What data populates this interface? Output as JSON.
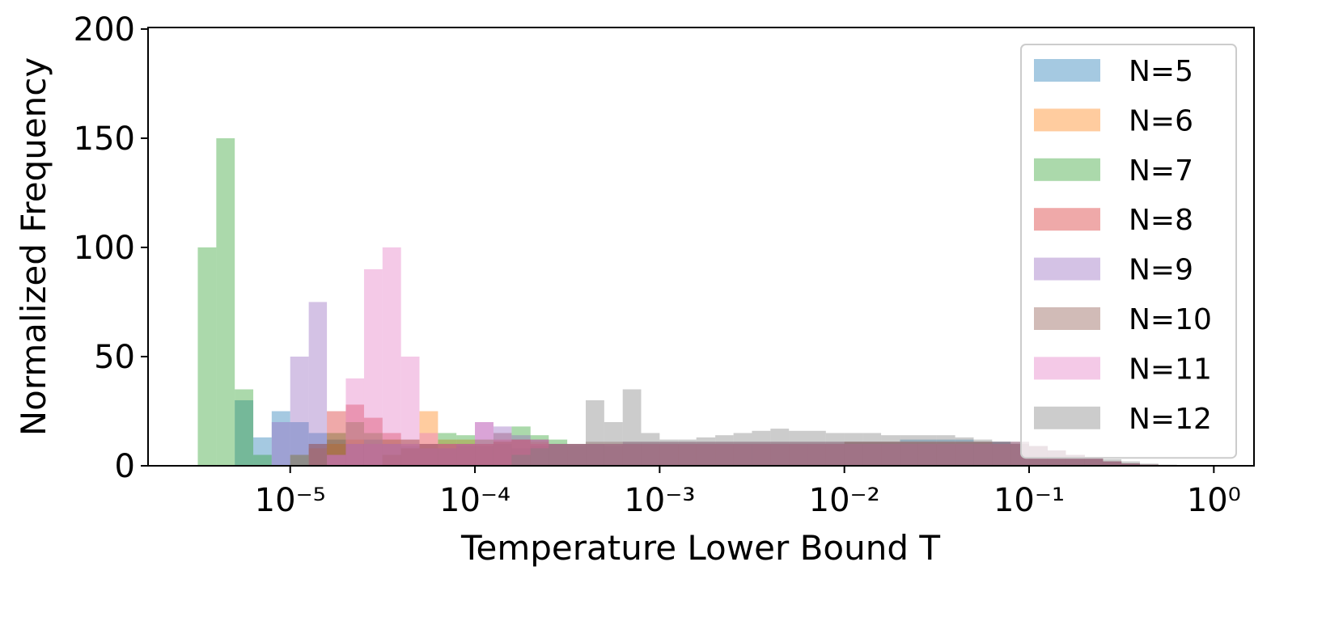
{
  "chart_data": {
    "type": "histogram",
    "xlabel": "Temperature Lower Bound T",
    "ylabel": "Normalized Frequency",
    "xscale": "log",
    "xlim": [
      1.7e-06,
      1.65
    ],
    "ylim": [
      0,
      200.7
    ],
    "xticks": [
      {
        "value": 1e-05,
        "label": "10⁻⁵"
      },
      {
        "value": 0.0001,
        "label": "10⁻⁴"
      },
      {
        "value": 0.001,
        "label": "10⁻³"
      },
      {
        "value": 0.01,
        "label": "10⁻²"
      },
      {
        "value": 0.1,
        "label": "10⁻¹"
      },
      {
        "value": 1,
        "label": "10⁰"
      }
    ],
    "yticks": [
      0,
      50,
      100,
      150,
      200
    ],
    "legend": "upper right",
    "opacity": 0.4,
    "bins": [
      3.16e-06,
      3.98e-06,
      5.01e-06,
      6.31e-06,
      7.94e-06,
      1e-05,
      1.26e-05,
      1.58e-05,
      2e-05,
      2.51e-05,
      3.16e-05,
      3.98e-05,
      5.01e-05,
      6.31e-05,
      7.94e-05,
      0.0001,
      0.000126,
      0.000158,
      0.0002,
      0.000251,
      0.000316,
      0.000398,
      0.000501,
      0.000631,
      0.000794,
      0.001,
      0.00126,
      0.00158,
      0.002,
      0.00251,
      0.00316,
      0.00398,
      0.00501,
      0.00631,
      0.00794,
      0.01,
      0.0126,
      0.0158,
      0.02,
      0.0251,
      0.0316,
      0.0398,
      0.0501,
      0.0631,
      0.0794,
      0.1,
      0.126,
      0.158,
      0.2,
      0.251,
      0.316,
      0.398,
      0.501,
      0.631,
      0.794,
      1
    ],
    "series": [
      {
        "name": "N=5",
        "color": "#1f77b4",
        "values": [
          0,
          0,
          30,
          13,
          25,
          20,
          15,
          12,
          10,
          12,
          10,
          9,
          10,
          8,
          9,
          9,
          10,
          8,
          9,
          10,
          9,
          10,
          9,
          10,
          10,
          10,
          10,
          10,
          10,
          10,
          10,
          10,
          10,
          10,
          10,
          11,
          11,
          11,
          12,
          12,
          12,
          12,
          11,
          11,
          10,
          9,
          7,
          5,
          4,
          2,
          1,
          0.5,
          0.2,
          0,
          0
        ]
      },
      {
        "name": "N=6",
        "color": "#ff7f0e",
        "values": [
          0,
          0,
          0,
          0,
          0,
          5,
          8,
          10,
          12,
          10,
          12,
          10,
          25,
          12,
          12,
          12,
          11,
          12,
          11,
          10,
          10,
          10,
          10,
          10,
          10,
          10,
          10,
          10,
          10,
          10,
          10,
          10,
          10,
          10,
          10,
          11,
          11,
          11,
          11,
          11,
          11,
          11,
          11,
          10,
          10,
          9,
          7,
          5,
          4,
          2,
          1,
          0.5,
          0.2,
          0,
          0
        ]
      },
      {
        "name": "N=7",
        "color": "#2ca02c",
        "values": [
          100,
          150,
          35,
          5,
          0,
          5,
          10,
          15,
          20,
          15,
          12,
          12,
          10,
          15,
          14,
          12,
          15,
          18,
          14,
          12,
          10,
          10,
          10,
          10,
          10,
          10,
          10,
          10,
          10,
          10,
          10,
          10,
          10,
          10,
          10,
          10,
          10,
          10,
          10,
          10,
          10,
          10,
          10,
          10,
          10,
          9,
          7,
          5,
          4,
          2,
          1,
          0.5,
          0.2,
          0,
          0
        ]
      },
      {
        "name": "N=8",
        "color": "#d62728",
        "values": [
          0,
          0,
          0,
          0,
          0,
          0,
          10,
          25,
          28,
          22,
          15,
          12,
          10,
          10,
          10,
          10,
          12,
          12,
          10,
          10,
          10,
          10,
          10,
          10,
          10,
          10,
          10,
          10,
          10,
          10,
          10,
          10,
          10,
          10,
          10,
          10,
          10,
          10,
          10,
          10,
          10,
          10,
          10,
          10,
          10,
          9,
          7,
          5,
          4,
          2,
          1,
          0.5,
          0.2,
          0,
          0
        ]
      },
      {
        "name": "N=9",
        "color": "#9467bd",
        "values": [
          0,
          0,
          0,
          0,
          20,
          50,
          75,
          5,
          10,
          10,
          10,
          10,
          8,
          8,
          10,
          20,
          18,
          14,
          12,
          10,
          10,
          10,
          10,
          11,
          11,
          11,
          11,
          11,
          11,
          11,
          11,
          11,
          11,
          11,
          11,
          11,
          11,
          11,
          11,
          11,
          11,
          11,
          11,
          11,
          11,
          9,
          7,
          5,
          4,
          2,
          1,
          0.5,
          0.2,
          0,
          0
        ]
      },
      {
        "name": "N=10",
        "color": "#8c564b",
        "values": [
          0,
          0,
          0,
          0,
          0,
          0,
          0,
          0,
          0,
          0,
          5,
          8,
          10,
          10,
          10,
          10,
          11,
          12,
          12,
          10,
          10,
          11,
          11,
          11,
          11,
          11,
          11,
          11,
          11,
          11,
          11,
          11,
          11,
          11,
          11,
          11,
          11,
          11,
          11,
          11,
          11,
          11,
          11,
          11,
          11,
          9,
          7,
          5,
          4,
          2,
          1,
          0.5,
          0.2,
          0,
          0
        ]
      },
      {
        "name": "N=11",
        "color": "#e377c2",
        "values": [
          0,
          0,
          0,
          0,
          0,
          0,
          0,
          5,
          40,
          90,
          100,
          50,
          15,
          10,
          10,
          20,
          15,
          12,
          12,
          10,
          10,
          10,
          10,
          10,
          10,
          10,
          10,
          10,
          10,
          10,
          10,
          10,
          10,
          10,
          10,
          10,
          10,
          10,
          10,
          10,
          10,
          10,
          10,
          10,
          10,
          9,
          7,
          5,
          4,
          2,
          1,
          0.5,
          0.2,
          0,
          0
        ]
      },
      {
        "name": "N=12",
        "color": "#7f7f7f",
        "values": [
          0,
          0,
          0,
          0,
          0,
          0,
          0,
          0,
          0,
          0,
          0,
          0,
          0,
          0,
          0,
          0,
          0,
          5,
          8,
          10,
          10,
          30,
          20,
          35,
          15,
          12,
          12,
          13,
          14,
          15,
          16,
          17,
          16,
          16,
          15,
          15,
          15,
          14,
          14,
          14,
          14,
          13,
          12,
          11,
          10,
          9,
          7,
          5,
          4,
          3,
          2,
          1,
          0.5,
          0.2,
          0
        ]
      }
    ]
  }
}
